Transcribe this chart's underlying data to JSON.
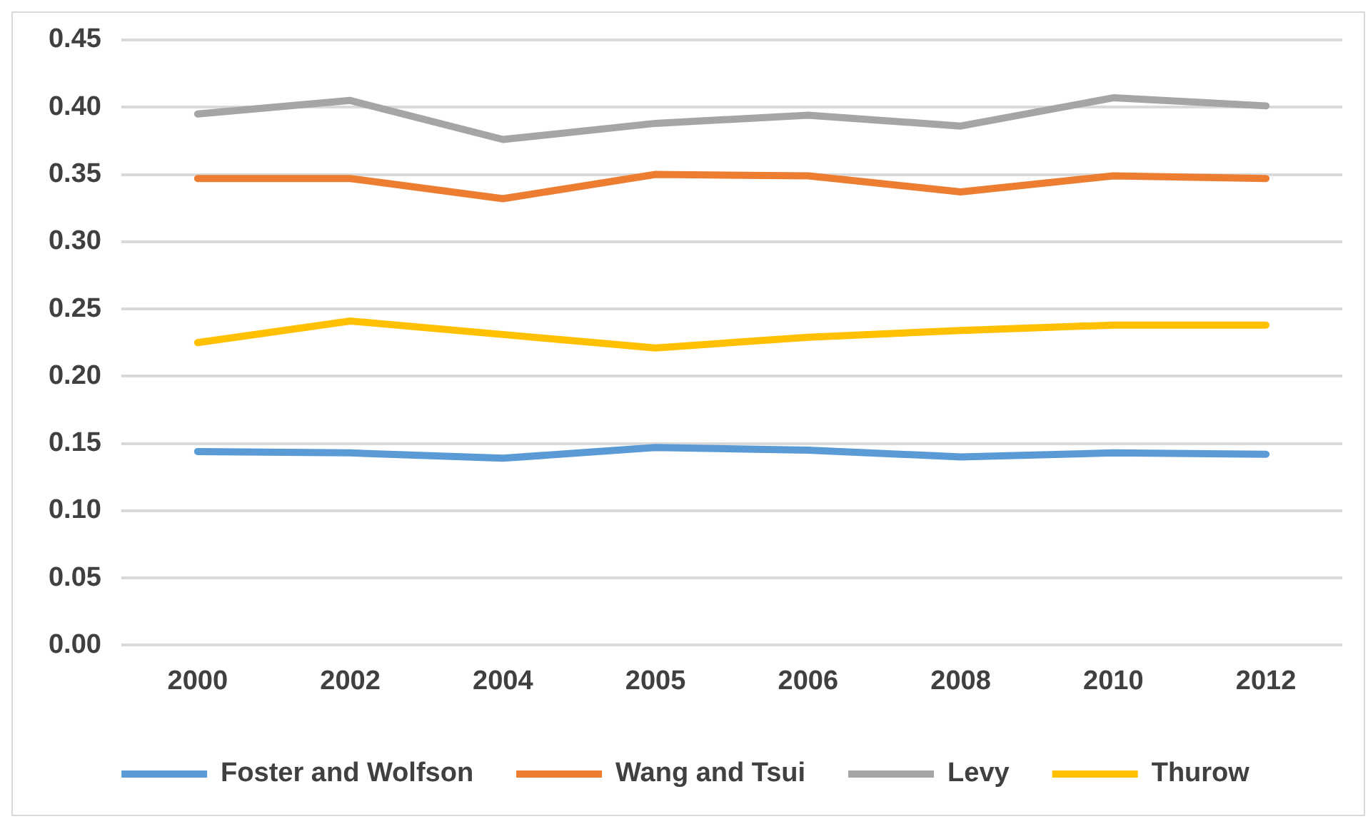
{
  "chart_data": {
    "type": "line",
    "categories": [
      "2000",
      "2002",
      "2004",
      "2005",
      "2006",
      "2008",
      "2010",
      "2012"
    ],
    "series": [
      {
        "name": "Foster and Wolfson",
        "color": "#5b9bd5",
        "values": [
          0.144,
          0.143,
          0.139,
          0.147,
          0.145,
          0.14,
          0.143,
          0.142
        ]
      },
      {
        "name": "Wang and Tsui",
        "color": "#ed7d31",
        "values": [
          0.347,
          0.347,
          0.332,
          0.35,
          0.349,
          0.337,
          0.349,
          0.347
        ]
      },
      {
        "name": "Levy",
        "color": "#a5a5a5",
        "values": [
          0.395,
          0.405,
          0.376,
          0.388,
          0.394,
          0.386,
          0.407,
          0.401
        ]
      },
      {
        "name": "Thurow",
        "color": "#ffc000",
        "values": [
          0.225,
          0.241,
          0.231,
          0.221,
          0.229,
          0.234,
          0.238,
          0.238
        ]
      }
    ],
    "ylim": [
      0,
      0.45
    ],
    "yticks": [
      {
        "value": 0,
        "label": "0.00"
      },
      {
        "value": 0.05,
        "label": "0.05"
      },
      {
        "value": 0.1,
        "label": "0.10"
      },
      {
        "value": 0.15,
        "label": "0.15"
      },
      {
        "value": 0.2,
        "label": "0.20"
      },
      {
        "value": 0.25,
        "label": "0.25"
      },
      {
        "value": 0.3,
        "label": "0.30"
      },
      {
        "value": 0.35,
        "label": "0.35"
      },
      {
        "value": 0.4,
        "label": "0.40"
      },
      {
        "value": 0.45,
        "label": "0.45"
      }
    ],
    "grid": "y",
    "legend": "bottom",
    "marker": "none",
    "line_style": "solid"
  }
}
